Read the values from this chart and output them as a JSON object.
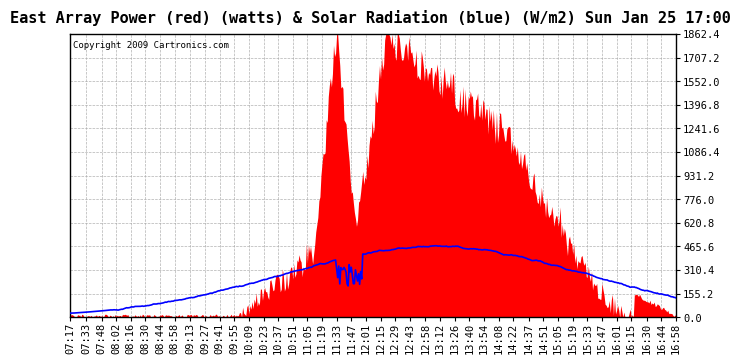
{
  "title": "East Array Power (red) (watts) & Solar Radiation (blue) (W/m2) Sun Jan 25 17:00",
  "copyright": "Copyright 2009 Cartronics.com",
  "bg_color": "#ffffff",
  "plot_bg_color": "#ffffff",
  "grid_color": "#aaaaaa",
  "y_min": 0.0,
  "y_max": 1862.4,
  "y_ticks": [
    0.0,
    155.2,
    310.4,
    465.6,
    620.8,
    776.0,
    931.2,
    1086.4,
    1241.6,
    1396.8,
    1552.0,
    1707.2,
    1862.4
  ],
  "x_labels": [
    "07:17",
    "07:33",
    "07:48",
    "08:02",
    "08:16",
    "08:30",
    "08:44",
    "08:58",
    "09:13",
    "09:27",
    "09:41",
    "09:55",
    "10:09",
    "10:23",
    "10:37",
    "10:51",
    "11:05",
    "11:19",
    "11:33",
    "11:47",
    "12:01",
    "12:15",
    "12:29",
    "12:43",
    "12:58",
    "13:12",
    "13:26",
    "13:40",
    "13:54",
    "14:08",
    "14:22",
    "14:37",
    "14:51",
    "15:05",
    "15:19",
    "15:33",
    "15:47",
    "16:01",
    "16:15",
    "16:30",
    "16:44",
    "16:58"
  ],
  "red_area_color": "#ff0000",
  "blue_line_color": "#0000ff",
  "title_fontsize": 11,
  "tick_fontsize": 7.5,
  "copyright_fontsize": 6.5,
  "title_color": "#000000",
  "border_color": "#000000"
}
